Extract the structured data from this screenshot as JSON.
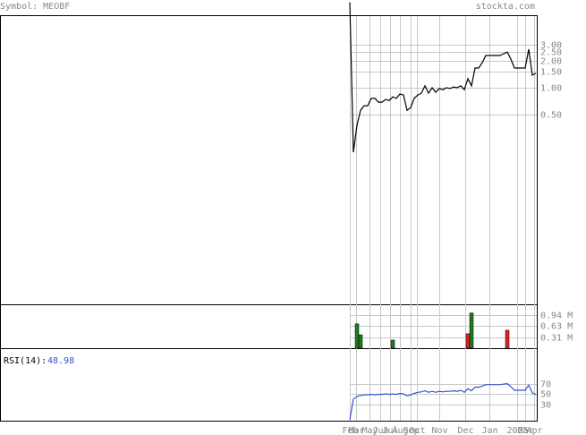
{
  "header": {
    "symbol": "Symbol: MEOBF",
    "site": "stockta.com"
  },
  "chart_data": [
    {
      "type": "line",
      "log_scale": true,
      "color": "#000000",
      "xlim": [
        -97.75,
        52.25
      ],
      "ylim": [
        0.0038,
        6.46
      ],
      "yticks": [
        {
          "value": 3,
          "label": "3.00"
        },
        {
          "value": 2.5,
          "label": "2.50"
        },
        {
          "value": 2,
          "label": "2.00"
        },
        {
          "value": 1.5,
          "label": "1.50"
        },
        {
          "value": 1,
          "label": "1.00"
        },
        {
          "value": 0.5,
          "label": "0.50"
        }
      ],
      "values": [
        9,
        0.19,
        0.38,
        0.56,
        0.63,
        0.63,
        0.76,
        0.76,
        0.69,
        0.69,
        0.74,
        0.72,
        0.79,
        0.76,
        0.85,
        0.83,
        0.56,
        0.6,
        0.76,
        0.83,
        0.87,
        1.05,
        0.87,
        1.0,
        0.89,
        0.98,
        0.95,
        1.0,
        0.98,
        1.02,
        1.0,
        1.05,
        0.95,
        1.26,
        1.05,
        1.66,
        1.66,
        1.9,
        2.29,
        2.29,
        2.29,
        2.29,
        2.29,
        2.4,
        2.5,
        2.09,
        1.66,
        1.66,
        1.66,
        1.66,
        2.69,
        1.38,
        1.45
      ]
    },
    {
      "type": "bar",
      "xlim": [
        -97.75,
        52.25
      ],
      "ylim": [
        0,
        1.22
      ],
      "yticks": [
        {
          "value": 0.94,
          "label": "0.94 M"
        },
        {
          "value": 0.63,
          "label": "0.63 M"
        },
        {
          "value": 0.31,
          "label": "0.31 M"
        }
      ],
      "values": [
        null,
        null,
        0.69,
        0.38,
        null,
        null,
        null,
        null,
        null,
        null,
        null,
        null,
        0.23,
        null,
        null,
        null,
        null,
        null,
        null,
        null,
        null,
        null,
        null,
        null,
        null,
        null,
        null,
        null,
        null,
        null,
        null,
        null,
        null,
        0.41,
        1.0,
        null,
        null,
        null,
        null,
        null,
        null,
        null,
        null,
        null,
        0.51,
        null,
        null,
        null,
        null,
        null,
        null,
        null,
        null
      ],
      "colors": [
        null,
        null,
        "#1e7a1e",
        "#1e7a1e",
        null,
        null,
        null,
        null,
        null,
        null,
        null,
        null,
        "#1e7a1e",
        null,
        null,
        null,
        null,
        null,
        null,
        null,
        null,
        null,
        null,
        null,
        null,
        null,
        null,
        null,
        null,
        null,
        null,
        null,
        null,
        "#dd2222",
        "#1e7a1e",
        null,
        null,
        null,
        null,
        null,
        null,
        null,
        null,
        null,
        "#dd2222",
        null,
        null,
        null,
        null,
        null,
        null,
        null,
        null
      ]
    },
    {
      "type": "line",
      "label": "RSI(14):",
      "color": "#3355cc",
      "xlim": [
        -97.75,
        52.25
      ],
      "ylim": [
        -2,
        137
      ],
      "yticks": [
        70,
        50,
        30
      ],
      "xticks": [
        {
          "value": 0,
          "label": "Feb"
        },
        {
          "value": 1.75,
          "label": "Mar"
        },
        {
          "value": 5.5,
          "label": "May"
        },
        {
          "value": 8.5,
          "label": "Jun"
        },
        {
          "value": 11.25,
          "label": "Jul"
        },
        {
          "value": 14,
          "label": "Aug"
        },
        {
          "value": 17,
          "label": "Sep"
        },
        {
          "value": 18.75,
          "label": "Oct"
        },
        {
          "value": 25,
          "label": "Nov"
        },
        {
          "value": 32.25,
          "label": "Dec"
        },
        {
          "value": 39,
          "label": "Jan"
        },
        {
          "value": 46.75,
          "label": "2025"
        },
        {
          "value": 49,
          "label": "Mar"
        },
        {
          "value": 51.5,
          "label": "Apr"
        }
      ],
      "values": [
        0,
        40,
        45,
        47,
        48,
        48,
        49,
        48,
        49,
        49,
        50,
        49,
        50,
        49,
        51,
        50,
        46,
        48,
        51,
        53,
        54,
        56,
        53,
        55,
        53,
        55,
        54,
        55,
        55,
        56,
        55,
        57,
        53,
        60,
        56,
        63,
        63,
        65,
        68,
        68,
        68,
        68,
        68,
        69,
        70,
        64,
        57,
        57,
        57,
        57,
        67,
        52,
        48.98
      ]
    }
  ]
}
